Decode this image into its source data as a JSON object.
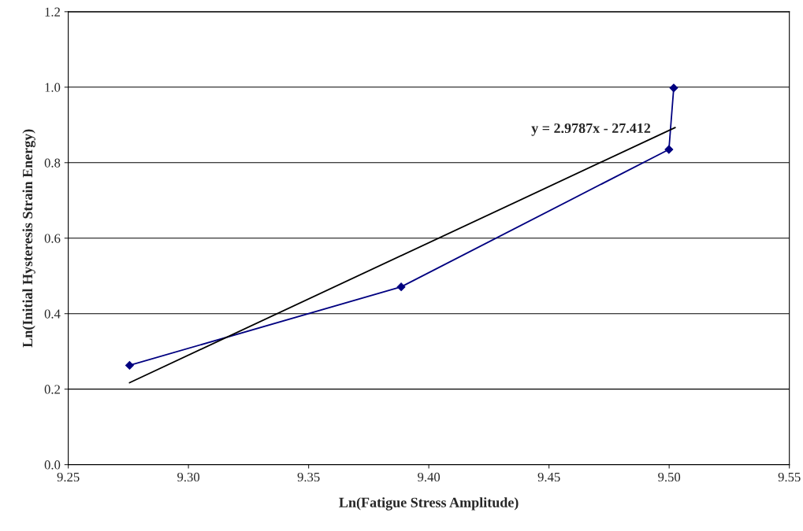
{
  "chart_data": {
    "type": "line",
    "xlabel": "Ln(Fatigue Stress Amplitude)",
    "ylabel": "Ln(Initial Hysteresis Strain Energy)",
    "series": [
      {
        "color": "#000080",
        "x": [
          9.2755,
          9.3885,
          9.4999,
          9.5019
        ],
        "values": [
          0.263,
          0.471,
          0.835,
          0.998
        ],
        "marker": "diamond"
      },
      {
        "type": "line",
        "color": "#000000",
        "x": [
          9.2755,
          9.5025
        ],
        "values": [
          0.217,
          0.893
        ],
        "marker": "none"
      }
    ],
    "annotations": [
      "y = 2.9787x - 27.412"
    ],
    "xlim": [
      9.25,
      9.55
    ],
    "xticks": [
      {
        "value": 9.25,
        "label": "9.25"
      },
      {
        "value": 9.3,
        "label": "9.30"
      },
      {
        "value": 9.35,
        "label": "9.35"
      },
      {
        "value": 9.4,
        "label": "9.40"
      },
      {
        "value": 9.45,
        "label": "9.45"
      },
      {
        "value": 9.5,
        "label": "9.50"
      },
      {
        "value": 9.55,
        "label": "9.55"
      }
    ],
    "ylim": [
      0,
      1.2
    ],
    "yticks": [
      {
        "value": 0,
        "label": "0.0"
      },
      {
        "value": 0.2,
        "label": "0.2"
      },
      {
        "value": 0.4,
        "label": "0.4"
      },
      {
        "value": 0.6,
        "label": "0.6"
      },
      {
        "value": 0.8,
        "label": "0.8"
      },
      {
        "value": 1.0,
        "label": "1.0"
      },
      {
        "value": 1.2,
        "label": "1.2"
      }
    ],
    "grid": "y",
    "line_style": "solid"
  }
}
